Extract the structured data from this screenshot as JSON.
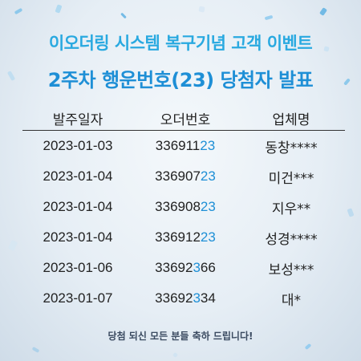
{
  "header": {
    "line1": "이오더링 시스템 복구기념 고객 이벤트",
    "line2": "2주차  행운번호(23) 당첨자  발표"
  },
  "table": {
    "columns": [
      "발주일자",
      "오더번호",
      "업체명"
    ],
    "rows": [
      {
        "date": "2023-01-03",
        "order_plain": "336911",
        "order_hl": "23",
        "order_tail": "",
        "company": "동창****"
      },
      {
        "date": "2023-01-04",
        "order_plain": "336907",
        "order_hl": "23",
        "order_tail": "",
        "company": "미건***"
      },
      {
        "date": "2023-01-04",
        "order_plain": "336908",
        "order_hl": "23",
        "order_tail": "",
        "company": "지우**"
      },
      {
        "date": "2023-01-04",
        "order_plain": "336912",
        "order_hl": "23",
        "order_tail": "",
        "company": "성경****"
      },
      {
        "date": "2023-01-06",
        "order_plain": "33692",
        "order_hl": "3",
        "order_tail": "66",
        "company": "보성***"
      },
      {
        "date": "2023-01-07",
        "order_plain": "33692",
        "order_hl": "3",
        "order_tail": "34",
        "company": "대*"
      }
    ]
  },
  "footer": "당첨 되신 모든 분들 축하 드립니다!",
  "colors": {
    "highlight": "#1e8fd6",
    "title_light_blue": "#29a9e0"
  }
}
